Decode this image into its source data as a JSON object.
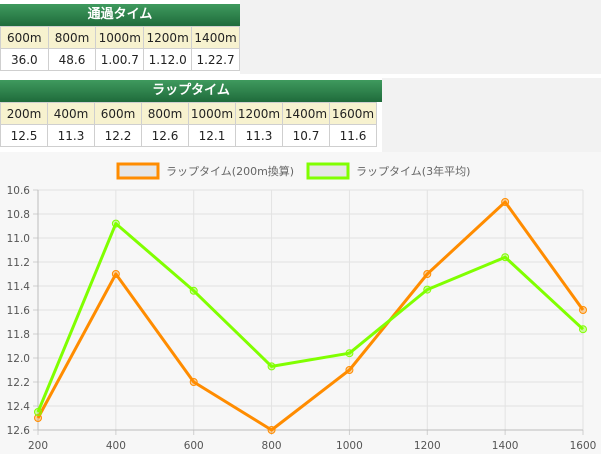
{
  "passing_time": {
    "title": "通過タイム",
    "distances": [
      "600m",
      "800m",
      "1000m",
      "1200m",
      "1400m"
    ],
    "times": [
      "36.0",
      "48.6",
      "1.00.7",
      "1.12.0",
      "1.22.7"
    ]
  },
  "lap_time": {
    "title": "ラップタイム",
    "distances": [
      "200m",
      "400m",
      "600m",
      "800m",
      "1000m",
      "1200m",
      "1400m",
      "1600m"
    ],
    "times": [
      "12.5",
      "11.3",
      "12.2",
      "12.6",
      "12.1",
      "11.3",
      "10.7",
      "11.6"
    ]
  },
  "chart_data": {
    "type": "line",
    "x": [
      200,
      400,
      600,
      800,
      1000,
      1200,
      1400,
      1600
    ],
    "x_tick_labels": [
      "200",
      "400",
      "600",
      "800",
      "1000",
      "1200",
      "1400",
      "1600"
    ],
    "y_tick_labels": [
      "10.6",
      "10.8",
      "11.0",
      "11.2",
      "11.4",
      "11.6",
      "11.8",
      "12.0",
      "12.2",
      "12.4",
      "12.6"
    ],
    "ylim": [
      10.6,
      12.6
    ],
    "y_reversed": true,
    "grid": true,
    "legend_position": "top-center",
    "series": [
      {
        "name": "ラップタイム(200m換算)",
        "color": "#ff8c00",
        "values": [
          12.5,
          11.3,
          12.2,
          12.6,
          12.1,
          11.3,
          10.7,
          11.6
        ]
      },
      {
        "name": "ラップタイム(3年平均)",
        "color": "#80ff00",
        "values": [
          12.45,
          10.88,
          11.44,
          12.07,
          11.96,
          11.43,
          11.16,
          11.76
        ]
      }
    ]
  }
}
